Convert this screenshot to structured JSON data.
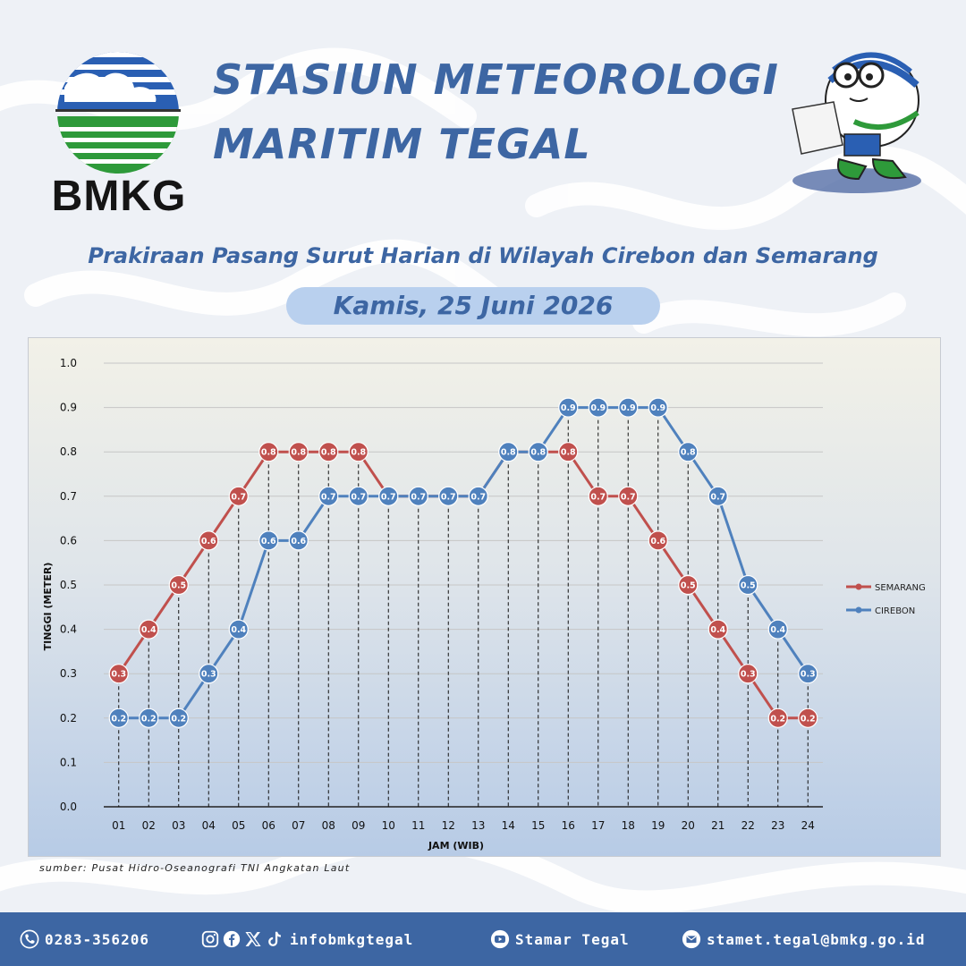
{
  "header": {
    "logo_text": "BMKG",
    "title_line1": "STASIUN METEOROLOGI",
    "title_line2": "MARITIM TEGAL",
    "subtitle": "Prakiraan Pasang Surut Harian di Wilayah Cirebon dan Semarang",
    "date": "Kamis, 25 Juni 2026"
  },
  "source": "sumber: Pusat Hidro-Oseanografi TNI Angkatan Laut",
  "footer": {
    "phone": "0283-356206",
    "social": "infobmkgtegal",
    "youtube": "Stamar Tegal",
    "email": "stamet.tegal@bmkg.go.id"
  },
  "colors": {
    "title": "#3d66a3",
    "semarang": "#c0504d",
    "cirebon": "#4f81bd",
    "footer_bg": "#3d66a3"
  },
  "chart_data": {
    "type": "line",
    "title": "",
    "xlabel": "JAM (WIB)",
    "ylabel": "TINGGI (METER)",
    "ylim": [
      0,
      1.0
    ],
    "y_ticks": [
      "0.0",
      "0.1",
      "0.2",
      "0.3",
      "0.4",
      "0.5",
      "0.6",
      "0.7",
      "0.8",
      "0.9",
      "1.0"
    ],
    "categories": [
      "01",
      "02",
      "03",
      "04",
      "05",
      "06",
      "07",
      "08",
      "09",
      "10",
      "11",
      "12",
      "13",
      "14",
      "15",
      "16",
      "17",
      "18",
      "19",
      "20",
      "21",
      "22",
      "23",
      "24"
    ],
    "grid": true,
    "legend_position": "right",
    "series": [
      {
        "name": "SEMARANG",
        "color": "#c0504d",
        "values": [
          0.3,
          0.4,
          0.5,
          0.6,
          0.7,
          0.8,
          0.8,
          0.8,
          0.8,
          0.7,
          0.7,
          0.7,
          0.7,
          0.8,
          0.8,
          0.8,
          0.7,
          0.7,
          0.6,
          0.5,
          0.4,
          0.3,
          0.2,
          0.2
        ]
      },
      {
        "name": "CIREBON",
        "color": "#4f81bd",
        "values": [
          0.2,
          0.2,
          0.2,
          0.3,
          0.4,
          0.6,
          0.6,
          0.7,
          0.7,
          0.7,
          0.7,
          0.7,
          0.7,
          0.8,
          0.8,
          0.9,
          0.9,
          0.9,
          0.9,
          0.8,
          0.7,
          0.5,
          0.4,
          0.3
        ]
      }
    ],
    "data_label_format": "0.0"
  }
}
